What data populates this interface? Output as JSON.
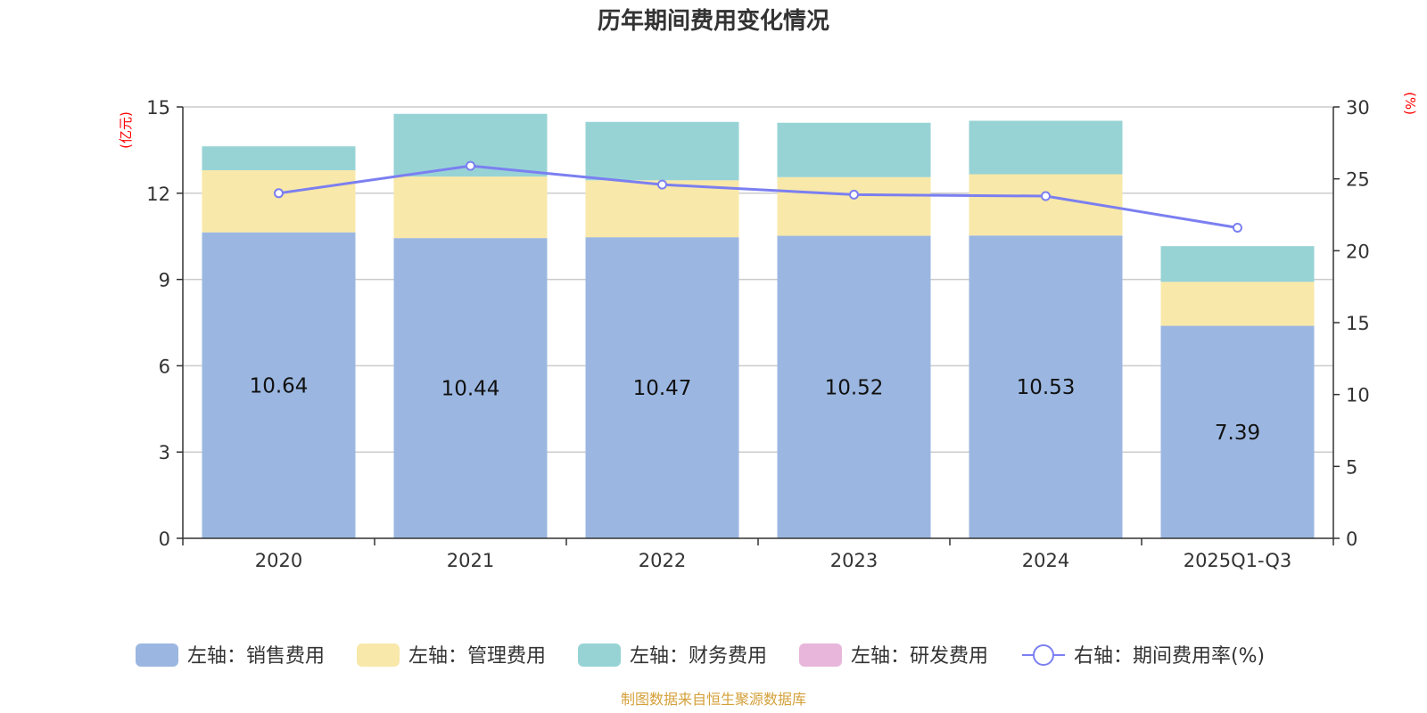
{
  "chart_data": {
    "type": "bar",
    "stacked": true,
    "title": "历年期间费用变化情况",
    "categories": [
      "2020",
      "2021",
      "2022",
      "2023",
      "2024",
      "2025Q1-Q3"
    ],
    "left_axis": {
      "unit": "(亿元)",
      "ylim": [
        0,
        15
      ],
      "ticks": [
        "0",
        "3",
        "6",
        "9",
        "12",
        "15"
      ]
    },
    "right_axis": {
      "unit": "(%)",
      "ylim": [
        0,
        30
      ],
      "ticks": [
        "0",
        "5",
        "10",
        "15",
        "20",
        "25",
        "30"
      ]
    },
    "series": [
      {
        "name": "左轴：销售费用",
        "axis": "left",
        "type": "bar",
        "color": "#9bb7e1",
        "values": [
          10.64,
          10.44,
          10.47,
          10.52,
          10.53,
          7.39
        ],
        "labels": [
          "10.64",
          "10.44",
          "10.47",
          "10.52",
          "10.53",
          "7.39"
        ]
      },
      {
        "name": "左轴：管理费用",
        "axis": "left",
        "type": "bar",
        "color": "#f8e8a9",
        "values": [
          2.16,
          2.14,
          1.98,
          2.04,
          2.13,
          1.53
        ]
      },
      {
        "name": "左轴：财务费用",
        "axis": "left",
        "type": "bar",
        "color": "#97d3d5",
        "values": [
          0.83,
          2.18,
          2.03,
          1.89,
          1.86,
          1.24
        ]
      },
      {
        "name": "左轴：研发费用",
        "axis": "left",
        "type": "bar",
        "color": "#e8b6da",
        "values": [
          0,
          0,
          0,
          0,
          0,
          0
        ]
      },
      {
        "name": "右轴：期间费用率(%)",
        "axis": "right",
        "type": "line",
        "color": "#7b7ff0",
        "values": [
          24.0,
          25.9,
          24.6,
          23.9,
          23.8,
          21.6
        ]
      }
    ],
    "axis_unit_color": "#ff0000",
    "grid": true,
    "legend_position": "bottom"
  },
  "source": {
    "text": "制图数据来自恒生聚源数据库",
    "color": "#d4a03a"
  }
}
